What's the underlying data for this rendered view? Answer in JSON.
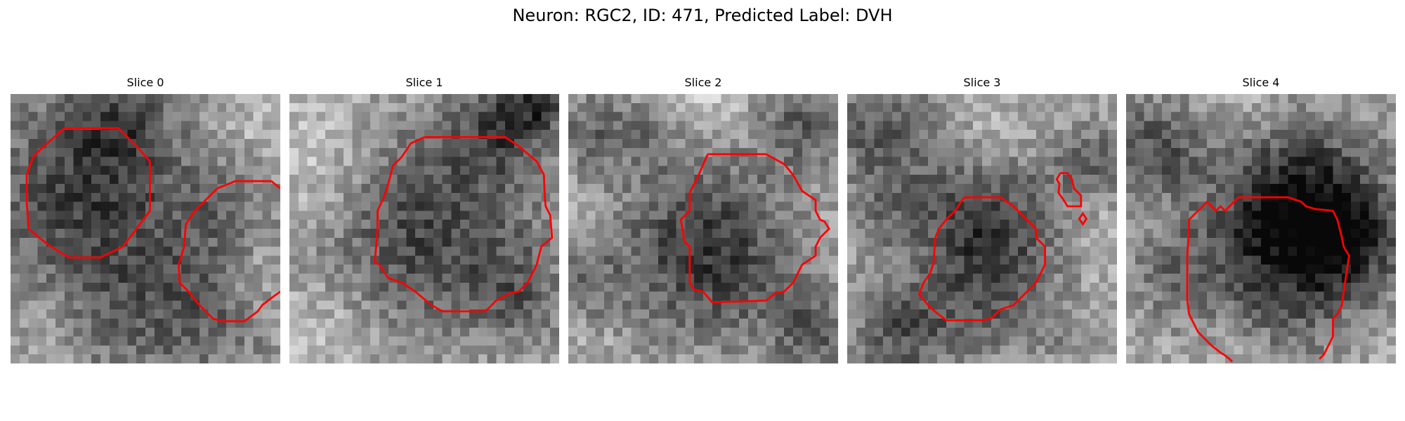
{
  "figure": {
    "title": "Neuron: RGC2, ID: 471, Predicted Label: DVH"
  },
  "panels": [
    {
      "title": "Slice 0"
    },
    {
      "title": "Slice 1"
    },
    {
      "title": "Slice 2"
    },
    {
      "title": "Slice 3"
    },
    {
      "title": "Slice 4"
    }
  ],
  "colors": {
    "contour": "#ff0000",
    "background": "#ffffff"
  }
}
